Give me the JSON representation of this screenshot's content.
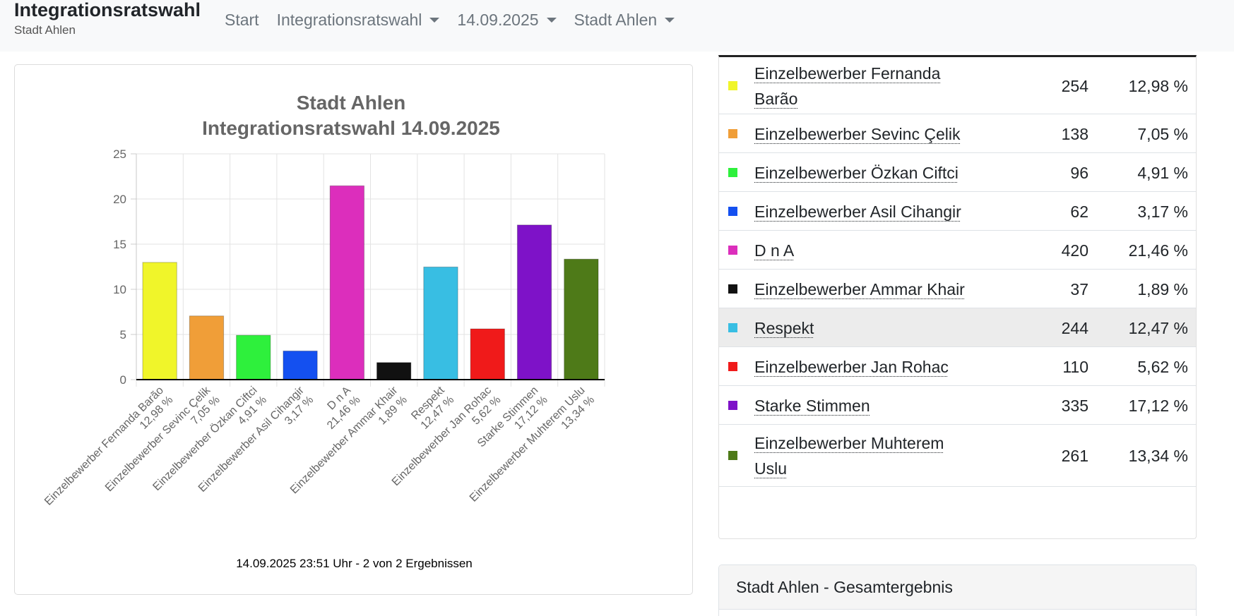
{
  "navbar": {
    "title": "Integrationsratswahl",
    "subtitle": "Stadt Ahlen",
    "links": [
      {
        "label": "Start",
        "dropdown": false
      },
      {
        "label": "Integrationsratswahl",
        "dropdown": true
      },
      {
        "label": "14.09.2025",
        "dropdown": true
      },
      {
        "label": "Stadt Ahlen",
        "dropdown": true
      }
    ]
  },
  "chart_data": {
    "type": "bar",
    "title": [
      "Stadt Ahlen",
      "Integrationsratswahl 14.09.2025"
    ],
    "categories": [
      [
        "Einzelbewerber Fernanda Barão",
        "12,98 %"
      ],
      [
        "Einzelbewerber Sevinc Çelik",
        "7,05 %"
      ],
      [
        "Einzelbewerber Özkan Ciftci",
        "4,91 %"
      ],
      [
        "Einzelbewerber Asil Cihangir",
        "3,17 %"
      ],
      [
        "D n A",
        "21,46 %"
      ],
      [
        "Einzelbewerber Ammar Khair",
        "1,89 %"
      ],
      [
        "Respekt",
        "12,47 %"
      ],
      [
        "Einzelbewerber Jan Rohac",
        "5,62 %"
      ],
      [
        "Starke Stimmen",
        "17,12 %"
      ],
      [
        "Einzelbewerber Muhterem Uslu",
        "13,34 %"
      ]
    ],
    "values": [
      12.98,
      7.05,
      4.91,
      3.17,
      21.46,
      1.89,
      12.47,
      5.62,
      17.12,
      13.34
    ],
    "colors": [
      "#f0f52a",
      "#f09e38",
      "#2ef03c",
      "#1450f0",
      "#dc2ebc",
      "#111111",
      "#38bee3",
      "#f01a1a",
      "#7e12c8",
      "#4e7a18"
    ],
    "ylim": [
      0,
      25
    ],
    "yticks": [
      0,
      5,
      10,
      15,
      20,
      25
    ],
    "grid": true,
    "legend": "none",
    "footer": "14.09.2025 23:51 Uhr - 2 von 2 Ergebnissen"
  },
  "results_table": {
    "rows": [
      {
        "name": "Einzelbewerber Fernanda Barão",
        "votes": "254",
        "percent": "12,98 %",
        "color": "#f0f52a"
      },
      {
        "name": "Einzelbewerber Sevinc Çelik",
        "votes": "138",
        "percent": "7,05 %",
        "color": "#f09e38"
      },
      {
        "name": "Einzelbewerber Özkan Ciftci",
        "votes": "96",
        "percent": "4,91 %",
        "color": "#2ef03c"
      },
      {
        "name": "Einzelbewerber Asil Cihangir",
        "votes": "62",
        "percent": "3,17 %",
        "color": "#1450f0"
      },
      {
        "name": "D n A",
        "votes": "420",
        "percent": "21,46 %",
        "color": "#dc2ebc"
      },
      {
        "name": "Einzelbewerber Ammar Khair",
        "votes": "37",
        "percent": "1,89 %",
        "color": "#111111"
      },
      {
        "name": "Respekt",
        "votes": "244",
        "percent": "12,47 %",
        "color": "#38bee3",
        "highlighted": true
      },
      {
        "name": "Einzelbewerber Jan Rohac",
        "votes": "110",
        "percent": "5,62 %",
        "color": "#f01a1a"
      },
      {
        "name": "Starke Stimmen",
        "votes": "335",
        "percent": "17,12 %",
        "color": "#7e12c8"
      },
      {
        "name": "Einzelbewerber Muhterem Uslu",
        "votes": "261",
        "percent": "13,34 %",
        "color": "#4e7a18"
      }
    ]
  },
  "gesamt": {
    "header": "Stadt Ahlen - Gesamtergebnis"
  }
}
